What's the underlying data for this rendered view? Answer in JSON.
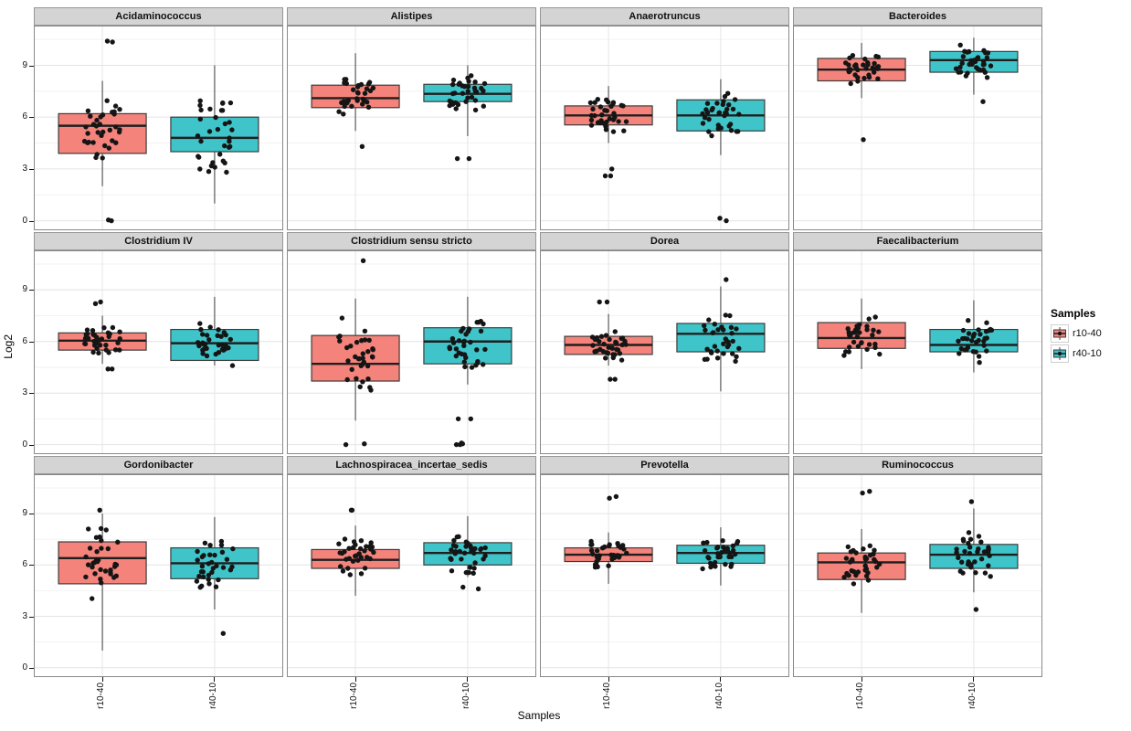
{
  "chart_data": {
    "type": "boxplot",
    "variant": "faceted boxplots with jittered points (ggplot2 style)",
    "title": "",
    "xlabel": "Samples",
    "ylabel": "Log2",
    "ylim": [
      -0.55,
      11.3
    ],
    "yticks": [
      0,
      3,
      6,
      9
    ],
    "yticks_minor": [
      1.5,
      4.5,
      7.5,
      10.5
    ],
    "x_categories": [
      "r10-40",
      "r40-10"
    ],
    "colors": {
      "r10-40": "#F4837B",
      "r40-10": "#3FC5C9"
    },
    "point_color": "#151515",
    "grid": {
      "rows": 3,
      "cols": 4
    },
    "legend": {
      "title": "Samples",
      "position": "right",
      "items": [
        {
          "label": "r10-40",
          "color": "#F4837B"
        },
        {
          "label": "r40-10",
          "color": "#3FC5C9"
        }
      ]
    },
    "facets": [
      {
        "title": "Acidaminococcus",
        "groups": [
          {
            "name": "r10-40",
            "lo": 2.0,
            "q1": 3.9,
            "med": 5.5,
            "q3": 6.2,
            "hi": 8.1,
            "outliers": [
              10.4,
              10.35,
              0.05,
              0.0
            ],
            "n": 34
          },
          {
            "name": "r40-10",
            "lo": 1.0,
            "q1": 4.0,
            "med": 4.8,
            "q3": 6.0,
            "hi": 9.0,
            "outliers": [],
            "n": 34
          }
        ]
      },
      {
        "title": "Alistipes",
        "groups": [
          {
            "name": "r10-40",
            "lo": 5.2,
            "q1": 6.55,
            "med": 7.1,
            "q3": 7.85,
            "hi": 9.7,
            "outliers": [
              4.3
            ],
            "n": 34
          },
          {
            "name": "r40-10",
            "lo": 4.9,
            "q1": 6.9,
            "med": 7.35,
            "q3": 7.9,
            "hi": 9.0,
            "outliers": [
              3.6,
              3.6
            ],
            "n": 34
          }
        ]
      },
      {
        "title": "Anaerotruncus",
        "groups": [
          {
            "name": "r10-40",
            "lo": 4.5,
            "q1": 5.55,
            "med": 6.1,
            "q3": 6.65,
            "hi": 7.8,
            "outliers": [
              3.0,
              2.6,
              2.6
            ],
            "n": 34
          },
          {
            "name": "r40-10",
            "lo": 3.8,
            "q1": 5.2,
            "med": 6.1,
            "q3": 7.0,
            "hi": 8.2,
            "outliers": [
              0.0,
              0.15
            ],
            "n": 34
          }
        ]
      },
      {
        "title": "Bacteroides",
        "groups": [
          {
            "name": "r10-40",
            "lo": 7.1,
            "q1": 8.1,
            "med": 8.75,
            "q3": 9.4,
            "hi": 10.3,
            "outliers": [
              4.7
            ],
            "n": 34
          },
          {
            "name": "r40-10",
            "lo": 7.3,
            "q1": 8.6,
            "med": 9.3,
            "q3": 9.8,
            "hi": 10.6,
            "outliers": [
              6.9
            ],
            "n": 34
          }
        ]
      },
      {
        "title": "Clostridium IV",
        "groups": [
          {
            "name": "r10-40",
            "lo": 4.7,
            "q1": 5.5,
            "med": 6.05,
            "q3": 6.5,
            "hi": 7.5,
            "outliers": [
              8.3,
              8.2,
              4.4,
              4.4
            ],
            "n": 34
          },
          {
            "name": "r40-10",
            "lo": 4.6,
            "q1": 4.9,
            "med": 5.9,
            "q3": 6.7,
            "hi": 8.6,
            "outliers": [],
            "n": 34
          }
        ]
      },
      {
        "title": "Clostridium sensu stricto",
        "groups": [
          {
            "name": "r10-40",
            "lo": 1.4,
            "q1": 3.7,
            "med": 4.7,
            "q3": 6.35,
            "hi": 8.5,
            "outliers": [
              10.7,
              0.05,
              0.0
            ],
            "n": 34
          },
          {
            "name": "r40-10",
            "lo": 3.5,
            "q1": 4.7,
            "med": 6.0,
            "q3": 6.8,
            "hi": 8.6,
            "outliers": [
              1.5,
              1.5,
              0.1,
              0.05,
              0.0,
              0.0
            ],
            "n": 34
          }
        ]
      },
      {
        "title": "Dorea",
        "groups": [
          {
            "name": "r10-40",
            "lo": 4.6,
            "q1": 5.25,
            "med": 5.8,
            "q3": 6.3,
            "hi": 7.6,
            "outliers": [
              8.3,
              8.3,
              3.8,
              3.8
            ],
            "n": 34
          },
          {
            "name": "r40-10",
            "lo": 3.1,
            "q1": 5.4,
            "med": 6.45,
            "q3": 7.05,
            "hi": 9.2,
            "outliers": [
              9.6
            ],
            "n": 34
          }
        ]
      },
      {
        "title": "Faecalibacterium",
        "groups": [
          {
            "name": "r10-40",
            "lo": 4.4,
            "q1": 5.6,
            "med": 6.2,
            "q3": 7.1,
            "hi": 8.5,
            "outliers": [],
            "n": 34
          },
          {
            "name": "r40-10",
            "lo": 4.2,
            "q1": 5.4,
            "med": 5.8,
            "q3": 6.7,
            "hi": 8.4,
            "outliers": [],
            "n": 34
          }
        ]
      },
      {
        "title": "Gordonibacter",
        "groups": [
          {
            "name": "r10-40",
            "lo": 1.0,
            "q1": 4.9,
            "med": 6.4,
            "q3": 7.35,
            "hi": 9.0,
            "outliers": [
              9.2
            ],
            "n": 34
          },
          {
            "name": "r40-10",
            "lo": 3.4,
            "q1": 5.2,
            "med": 6.1,
            "q3": 7.0,
            "hi": 8.8,
            "outliers": [
              2.0
            ],
            "n": 34
          }
        ]
      },
      {
        "title": "Lachnospiracea_incertae_sedis",
        "groups": [
          {
            "name": "r10-40",
            "lo": 4.2,
            "q1": 5.8,
            "med": 6.3,
            "q3": 6.9,
            "hi": 8.3,
            "outliers": [
              9.2,
              9.2
            ],
            "n": 34
          },
          {
            "name": "r40-10",
            "lo": 5.3,
            "q1": 6.0,
            "med": 6.7,
            "q3": 7.3,
            "hi": 8.85,
            "outliers": [
              4.7,
              4.6
            ],
            "n": 34
          }
        ]
      },
      {
        "title": "Prevotella",
        "groups": [
          {
            "name": "r10-40",
            "lo": 4.9,
            "q1": 6.2,
            "med": 6.6,
            "q3": 7.0,
            "hi": 7.9,
            "outliers": [
              10.0,
              9.9
            ],
            "n": 34
          },
          {
            "name": "r40-10",
            "lo": 4.8,
            "q1": 6.1,
            "med": 6.7,
            "q3": 7.15,
            "hi": 8.2,
            "outliers": [],
            "n": 34
          }
        ]
      },
      {
        "title": "Ruminococcus",
        "groups": [
          {
            "name": "r10-40",
            "lo": 3.2,
            "q1": 5.15,
            "med": 6.15,
            "q3": 6.7,
            "hi": 8.1,
            "outliers": [
              10.3,
              10.2
            ],
            "n": 34
          },
          {
            "name": "r40-10",
            "lo": 4.4,
            "q1": 5.8,
            "med": 6.6,
            "q3": 7.2,
            "hi": 9.3,
            "outliers": [
              9.7,
              3.4
            ],
            "n": 34
          }
        ]
      }
    ]
  }
}
